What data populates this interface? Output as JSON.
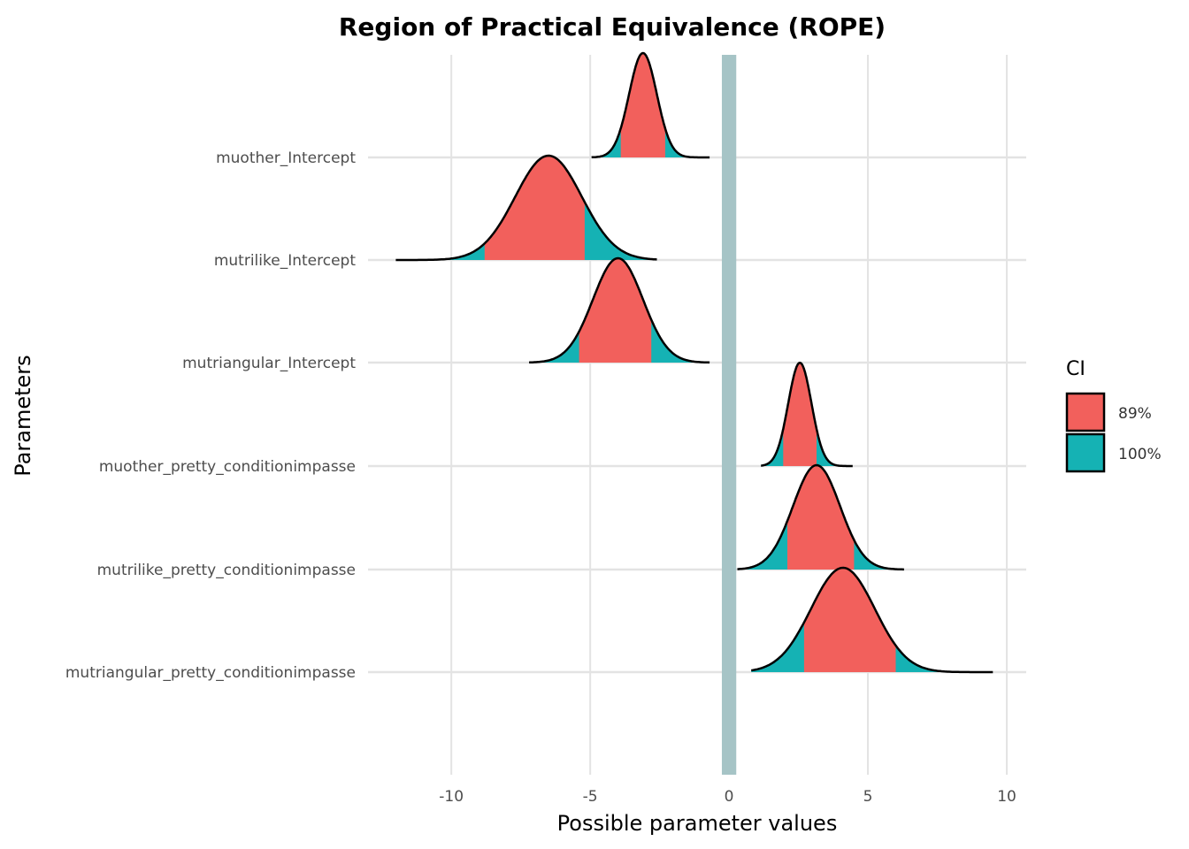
{
  "chart_data": {
    "type": "area",
    "title": "Region of Practical Equivalence (ROPE)",
    "xlabel": "Possible parameter values",
    "ylabel": "Parameters",
    "xlim": [
      -13,
      10.7
    ],
    "x_ticks": [
      -10,
      -5,
      0,
      5,
      10
    ],
    "x_tick_labels": [
      "-10",
      "-5",
      "0",
      "5",
      "10"
    ],
    "grid": true,
    "legend_position": "right",
    "legend": {
      "title": "CI",
      "entries": [
        {
          "label": "89%",
          "color": "#F2605C"
        },
        {
          "label": "100%",
          "color": "#15B2B4"
        }
      ]
    },
    "rope": {
      "low": -0.1,
      "high": 0.1,
      "color": "#A6C4C6"
    },
    "series": [
      {
        "name": "muother_Intercept",
        "mean": -3.1,
        "sd": 0.5,
        "min": -4.95,
        "max": -0.7,
        "ci89": [
          -3.9,
          -2.3
        ],
        "ridge_height": 1.0
      },
      {
        "name": "mutrilike_Intercept",
        "mean": -6.5,
        "sd": 1.2,
        "min": -12.0,
        "max": -2.6,
        "ci89": [
          -8.8,
          -5.2
        ],
        "ridge_height": 1.0
      },
      {
        "name": "mutriangular_Intercept",
        "mean": -4.0,
        "sd": 0.9,
        "min": -7.2,
        "max": -0.7,
        "ci89": [
          -5.4,
          -2.8
        ],
        "ridge_height": 1.0
      },
      {
        "name": "muother_pretty_conditionimpasse",
        "mean": 2.55,
        "sd": 0.42,
        "min": 1.15,
        "max": 4.45,
        "ci89": [
          1.95,
          3.15
        ],
        "ridge_height": 0.99
      },
      {
        "name": "mutrilike_pretty_conditionimpasse",
        "mean": 3.15,
        "sd": 0.85,
        "min": 0.3,
        "max": 6.3,
        "ci89": [
          2.1,
          4.5
        ],
        "ridge_height": 1.0
      },
      {
        "name": "mutriangular_pretty_conditionimpasse",
        "mean": 4.1,
        "sd": 1.15,
        "min": 0.8,
        "max": 9.5,
        "ci89": [
          2.7,
          6.0
        ],
        "ridge_height": 1.0
      }
    ],
    "colors": {
      "ci89": "#F2605C",
      "ci100": "#15B2B4",
      "outline": "#000000",
      "grid": "#E3E3E3"
    }
  }
}
